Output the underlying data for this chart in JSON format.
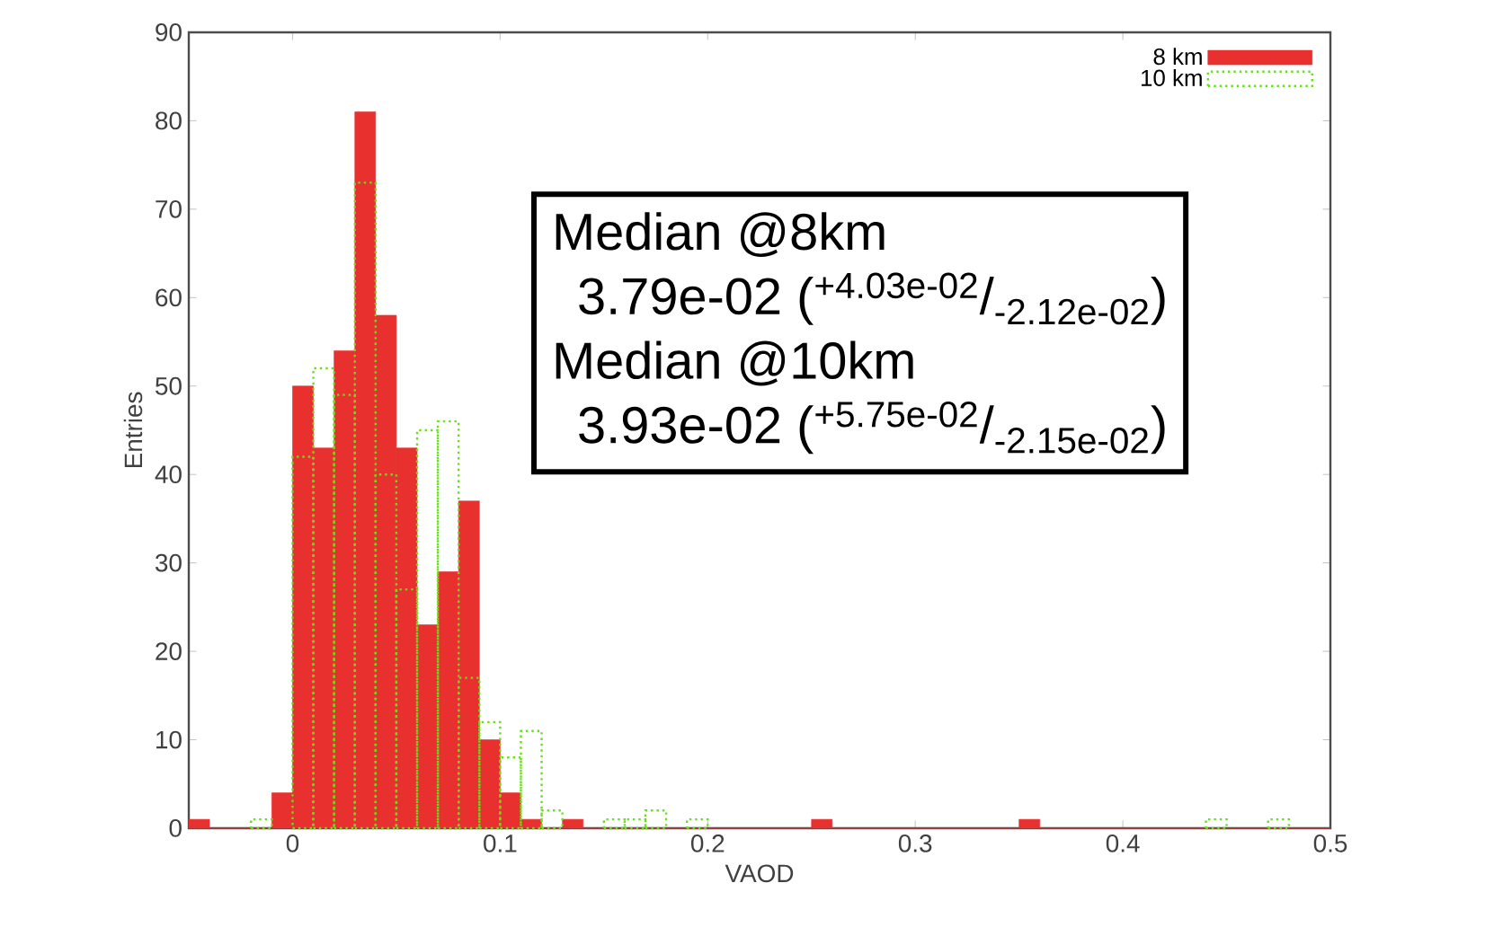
{
  "chart_data": {
    "type": "histogram",
    "xlabel": "VAOD",
    "ylabel": "Entries",
    "bins": [
      -0.05,
      -0.04,
      -0.03,
      -0.02,
      -0.01,
      0,
      0.01,
      0.02,
      0.03,
      0.04,
      0.05,
      0.06,
      0.07,
      0.08,
      0.09,
      0.1,
      0.11,
      0.12,
      0.13,
      0.14,
      0.15,
      0.16,
      0.17,
      0.18,
      0.19,
      0.2,
      0.21,
      0.22,
      0.23,
      0.24,
      0.25,
      0.26,
      0.27,
      0.28,
      0.29,
      0.3,
      0.31,
      0.32,
      0.33,
      0.34,
      0.35,
      0.36,
      0.37,
      0.38,
      0.39,
      0.4,
      0.41,
      0.42,
      0.43,
      0.44,
      0.45,
      0.46,
      0.47,
      0.48,
      0.49,
      0.5
    ],
    "series": [
      {
        "name": "8 km",
        "color": "#e8312f",
        "line_style": "solid",
        "values": [
          1,
          0,
          0,
          0,
          4,
          50,
          43,
          54,
          81,
          58,
          43,
          23,
          29,
          37,
          10,
          4,
          1,
          0,
          1,
          0,
          0,
          0,
          0,
          0,
          0,
          0,
          0,
          0,
          0,
          0,
          1,
          0,
          0,
          0,
          0,
          0,
          0,
          0,
          0,
          0,
          1,
          0,
          0,
          0,
          0,
          0,
          0,
          0,
          0,
          0,
          0,
          0,
          0,
          0,
          0
        ]
      },
      {
        "name": "10 km",
        "color": "#66e01a",
        "line_style": "dotted",
        "values": [
          null,
          null,
          null,
          1,
          null,
          42,
          52,
          49,
          73,
          40,
          27,
          45,
          46,
          17,
          12,
          8,
          11,
          2,
          null,
          null,
          1,
          1,
          2,
          null,
          1,
          null,
          null,
          null,
          null,
          null,
          null,
          null,
          null,
          null,
          null,
          null,
          null,
          null,
          null,
          null,
          null,
          null,
          null,
          null,
          null,
          null,
          null,
          null,
          null,
          1,
          null,
          null,
          1,
          null,
          null
        ]
      }
    ],
    "annotations": [
      "Median @8km",
      "3.79e-02 ($^{+4.03e-02}$/$_{-2.12e-02}$)",
      "Median @10km",
      "3.93e-02 ($^{+5.75e-02}$/$_{-2.15e-02}$)"
    ],
    "xlim": [
      -0.05,
      0.5
    ],
    "ylim": [
      0,
      90
    ],
    "xticks": [
      0,
      0.1,
      0.2,
      0.3,
      0.4,
      0.5
    ],
    "yticks": [
      0,
      10,
      20,
      30,
      40,
      50,
      60,
      70,
      80,
      90
    ],
    "legend": "top right",
    "grid": false
  }
}
